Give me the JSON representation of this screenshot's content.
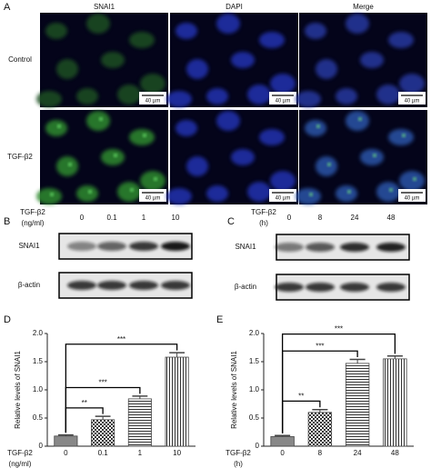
{
  "panel_a": {
    "label": "A",
    "columns": [
      "SNAI1",
      "DAPI",
      "Merge"
    ],
    "rows": [
      "Control",
      "TGF-β2"
    ],
    "scale_bar": "40 µm"
  },
  "panel_b": {
    "label": "B",
    "treatment": "TGF-β2",
    "unit": "(ng/ml)",
    "lanes": [
      "0",
      "0.1",
      "1",
      "10"
    ],
    "rows": [
      "SNAI1",
      "β-actin"
    ]
  },
  "panel_c": {
    "label": "C",
    "treatment": "TGF-β2",
    "unit": "(h)",
    "lanes": [
      "0",
      "8",
      "24",
      "48"
    ],
    "rows": [
      "SNAI1",
      "β-actin"
    ]
  },
  "chart_data": [
    {
      "type": "bar",
      "panel": "D",
      "ylabel": "Relative levels of SNAI1",
      "xlabel": "TGF-β2",
      "xunit": "(ng/ml)",
      "categories": [
        "0",
        "0.1",
        "1",
        "10"
      ],
      "values": [
        0.18,
        0.47,
        0.84,
        1.58
      ],
      "errors": [
        0.02,
        0.06,
        0.05,
        0.08
      ],
      "ylim": [
        0,
        2
      ],
      "yticks": [
        0,
        0.5,
        {
          "value": 1,
          "label": "1.0"
        },
        1.5,
        {
          "value": 2,
          "label": "2.0"
        }
      ],
      "fill_patterns": [
        "solid",
        "checker",
        "hstripe",
        "vstripe"
      ],
      "color": "#444444",
      "significance": [
        {
          "from": 0,
          "to": 1,
          "label": "**"
        },
        {
          "from": 0,
          "to": 2,
          "label": "***"
        },
        {
          "from": 0,
          "to": 3,
          "label": "***"
        }
      ]
    },
    {
      "type": "bar",
      "panel": "E",
      "ylabel": "Relative levels of SNAI1",
      "xlabel": "TGF-β2",
      "xunit": "(h)",
      "categories": [
        "0",
        "8",
        "24",
        "48"
      ],
      "values": [
        0.17,
        0.6,
        1.47,
        1.55
      ],
      "errors": [
        0.02,
        0.05,
        0.07,
        0.05
      ],
      "ylim": [
        0,
        2
      ],
      "yticks": [
        0,
        0.5,
        {
          "value": 1,
          "label": "1.0"
        },
        1.5,
        {
          "value": 2,
          "label": "2.0"
        }
      ],
      "fill_patterns": [
        "solid",
        "checker",
        "hstripe",
        "vstripe"
      ],
      "color": "#444444",
      "significance": [
        {
          "from": 0,
          "to": 1,
          "label": "**"
        },
        {
          "from": 0,
          "to": 2,
          "label": "***"
        },
        {
          "from": 0,
          "to": 3,
          "label": "***"
        }
      ]
    }
  ]
}
